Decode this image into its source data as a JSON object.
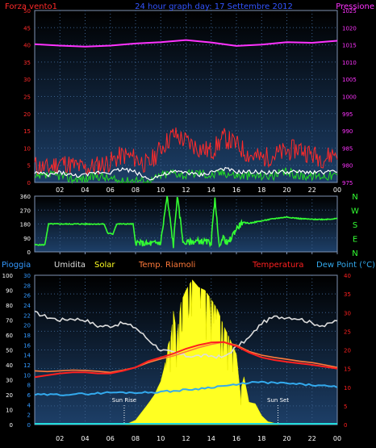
{
  "header": {
    "left": "Forza vento1",
    "center": "24 hour graph day:  17 Settembre 2012",
    "right": "Pressione"
  },
  "colors": {
    "wind_left": "#ff2a2a",
    "pressure": "#ff33ff",
    "title": "#3355ff",
    "wind_dir": "#33ff33",
    "rain": "#3399ff",
    "humidity": "#dddddd",
    "solar": "#ffff22",
    "app_temp": "#ff7a3a",
    "temp": "#ff2020",
    "dewpoint": "#33aaee"
  },
  "x_ticks": [
    "02",
    "04",
    "06",
    "08",
    "10",
    "12",
    "14",
    "16",
    "18",
    "20",
    "22",
    "00"
  ],
  "x_ticks_bottom": [
    "02",
    "04",
    "06",
    "08",
    "10",
    "12",
    "14",
    "16",
    "18",
    "20",
    "22",
    "00"
  ],
  "chart_data": [
    {
      "type": "line",
      "left_axis": {
        "label": "Forza vento1",
        "ticks": [
          0,
          5,
          10,
          15,
          20,
          25,
          30,
          35,
          40,
          45,
          50
        ],
        "range": [
          0,
          50
        ]
      },
      "right_axis": {
        "label": "Pressione",
        "ticks": [
          975,
          980,
          985,
          990,
          995,
          1000,
          1005,
          1010,
          1015,
          1020,
          1025
        ],
        "range": [
          975,
          1025
        ]
      },
      "x_hours": [
        0,
        24
      ],
      "series": [
        {
          "name": "Pressione",
          "x": [
            0,
            2,
            4,
            6,
            8,
            10,
            12,
            14,
            16,
            18,
            20,
            22,
            24
          ],
          "y": [
            1015.2,
            1014.8,
            1014.5,
            1014.8,
            1015.4,
            1015.8,
            1016.4,
            1015.7,
            1014.7,
            1015.1,
            1015.8,
            1015.6,
            1016.2
          ]
        },
        {
          "x": [
            0,
            1,
            2,
            3,
            4,
            5,
            6,
            7,
            8,
            9,
            10,
            11,
            12,
            13,
            14,
            15,
            16,
            17,
            18,
            19,
            20,
            21,
            22,
            23,
            24
          ],
          "y": [
            5,
            4,
            6,
            5,
            4,
            5,
            6,
            8,
            7,
            5,
            10,
            14,
            12,
            10,
            9,
            13,
            11,
            8,
            7,
            8,
            9,
            10,
            8,
            7,
            9
          ]
        },
        {
          "x": [
            0,
            1,
            2,
            3,
            4,
            5,
            6,
            7,
            8,
            9,
            10,
            11,
            12,
            13,
            14,
            15,
            16,
            17,
            18,
            19,
            20,
            21,
            22,
            23,
            24
          ],
          "y": [
            3,
            2,
            3,
            2,
            2,
            3,
            3,
            4,
            3,
            1,
            2,
            3,
            3,
            2,
            3,
            4,
            3,
            3,
            3,
            3,
            3,
            3,
            3,
            3,
            3
          ]
        },
        {
          "x": [
            0,
            1,
            2,
            3,
            4,
            5,
            6,
            7,
            8,
            9,
            10,
            11,
            12,
            13,
            14,
            15,
            16,
            17,
            18,
            19,
            20,
            21,
            22,
            23,
            24
          ],
          "y": [
            1,
            2,
            2,
            1,
            1,
            2,
            1,
            0,
            1,
            0,
            2,
            3,
            2,
            3,
            2,
            3,
            2,
            2,
            2,
            2,
            3,
            2,
            2,
            2,
            2
          ]
        }
      ]
    },
    {
      "type": "line",
      "left_axis": {
        "ticks": [
          0,
          90,
          180,
          270,
          360
        ],
        "range": [
          0,
          360
        ]
      },
      "right_axis": {
        "ticks": [
          "N",
          "W",
          "S",
          "E",
          "N"
        ]
      },
      "x_hours": [
        0,
        24
      ],
      "series": [
        {
          "x": [
            0,
            0.8,
            1.1,
            5.5,
            5.8,
            6.2,
            6.5,
            7.8,
            8,
            9,
            10,
            10.5,
            11,
            11.3,
            11.8,
            12,
            13,
            14,
            14.3,
            14.6,
            15,
            15.3,
            16,
            16.5,
            17,
            18,
            19,
            20,
            21,
            22,
            23,
            24
          ],
          "y": [
            45,
            45,
            180,
            180,
            120,
            115,
            180,
            180,
            60,
            50,
            60,
            360,
            40,
            360,
            50,
            60,
            70,
            60,
            360,
            50,
            90,
            50,
            150,
            190,
            185,
            200,
            215,
            225,
            215,
            210,
            210,
            215
          ]
        }
      ]
    },
    {
      "type": "line",
      "legend": [
        "Pioggia",
        "Umidita",
        "Solar",
        "Temp. Riamoli",
        "Temperatura",
        "Dew Point (°C)"
      ],
      "axis_rain": {
        "ticks": [
          0,
          10,
          20,
          30,
          40,
          50,
          60,
          70,
          80,
          90,
          100
        ],
        "range": [
          0,
          100
        ]
      },
      "axis_humidity": {
        "ticks": [
          0,
          2,
          4,
          6,
          8,
          10,
          12,
          14,
          16,
          18,
          20,
          22,
          24,
          26,
          28,
          30
        ],
        "range": [
          0,
          30
        ]
      },
      "right_axis": {
        "ticks": [
          0,
          5,
          10,
          15,
          20,
          25,
          30,
          35,
          40
        ],
        "range": [
          0,
          40
        ]
      },
      "annotations": [
        {
          "text": "Sun Rise",
          "hour": 7.1
        },
        {
          "text": "Sun Set",
          "hour": 19.3
        }
      ],
      "x_hours": [
        0,
        24
      ],
      "series": [
        {
          "name": "Umidita",
          "x": [
            0,
            1,
            2,
            3,
            4,
            5,
            6,
            7,
            8,
            9,
            10,
            11,
            12,
            13,
            14,
            15,
            16,
            17,
            18,
            19,
            20,
            21,
            22,
            23,
            24
          ],
          "y": [
            75,
            72,
            70,
            71,
            70,
            66,
            66,
            68,
            65,
            57,
            50,
            48,
            46,
            46,
            46,
            45,
            52,
            58,
            68,
            72,
            72,
            71,
            68,
            66,
            70
          ]
        },
        {
          "name": "Temperatura",
          "x": [
            0,
            1,
            2,
            3,
            4,
            5,
            6,
            7,
            8,
            9,
            10,
            11,
            12,
            13,
            14,
            15,
            16,
            17,
            18,
            19,
            20,
            21,
            22,
            23,
            24
          ],
          "y": [
            12.7,
            13.2,
            13.7,
            14.0,
            14.0,
            13.7,
            13.7,
            14.4,
            15.3,
            17.0,
            18.0,
            19.0,
            20.3,
            21.3,
            22.0,
            22.1,
            21.0,
            19.3,
            18.0,
            17.3,
            16.8,
            16.4,
            16.0,
            15.5,
            15.0
          ]
        },
        {
          "name": "Temp. Riamoli",
          "x": [
            0,
            1,
            2,
            3,
            4,
            5,
            6,
            7,
            8,
            9,
            10,
            11,
            12,
            13,
            14,
            15,
            16,
            17,
            18,
            19,
            20,
            21,
            22,
            23,
            24
          ],
          "y": [
            14.4,
            14.2,
            14.4,
            14.6,
            14.5,
            14.3,
            14.0,
            14.6,
            15.3,
            16.6,
            17.6,
            18.4,
            19.5,
            20.6,
            21.5,
            22.1,
            21.3,
            19.6,
            18.6,
            18.0,
            17.5,
            17.0,
            16.6,
            16.0,
            15.3
          ]
        },
        {
          "name": "Dew Point",
          "x": [
            0,
            1,
            2,
            3,
            4,
            5,
            6,
            7,
            8,
            9,
            10,
            11,
            12,
            13,
            14,
            15,
            16,
            17,
            18,
            19,
            20,
            21,
            22,
            23,
            24
          ],
          "y": [
            8.0,
            8.0,
            8.0,
            8.2,
            8.2,
            8.4,
            8.6,
            8.6,
            8.6,
            8.6,
            8.8,
            9.0,
            9.3,
            9.6,
            10.0,
            10.4,
            10.6,
            11.3,
            11.3,
            11.2,
            11.0,
            10.8,
            10.6,
            10.3,
            10.1
          ]
        },
        {
          "name": "Solar",
          "x": [
            7.2,
            8,
            9,
            9.5,
            10,
            10.3,
            10.6,
            10.8,
            11,
            11.3,
            11.6,
            12,
            12.5,
            13,
            13.5,
            14,
            14.5,
            15,
            15.5,
            16,
            16.3,
            16.6,
            17,
            17.5,
            18,
            18.5,
            19,
            19.3
          ],
          "y": [
            0,
            3,
            14,
            20,
            29,
            39,
            54,
            58,
            76,
            60,
            82,
            90,
            97,
            92,
            90,
            84,
            77,
            66,
            57,
            47,
            22,
            32,
            15,
            14,
            6,
            2,
            1,
            0
          ]
        },
        {
          "name": "Pioggia",
          "x": [
            0,
            24
          ],
          "y": [
            0,
            0
          ]
        }
      ]
    }
  ]
}
